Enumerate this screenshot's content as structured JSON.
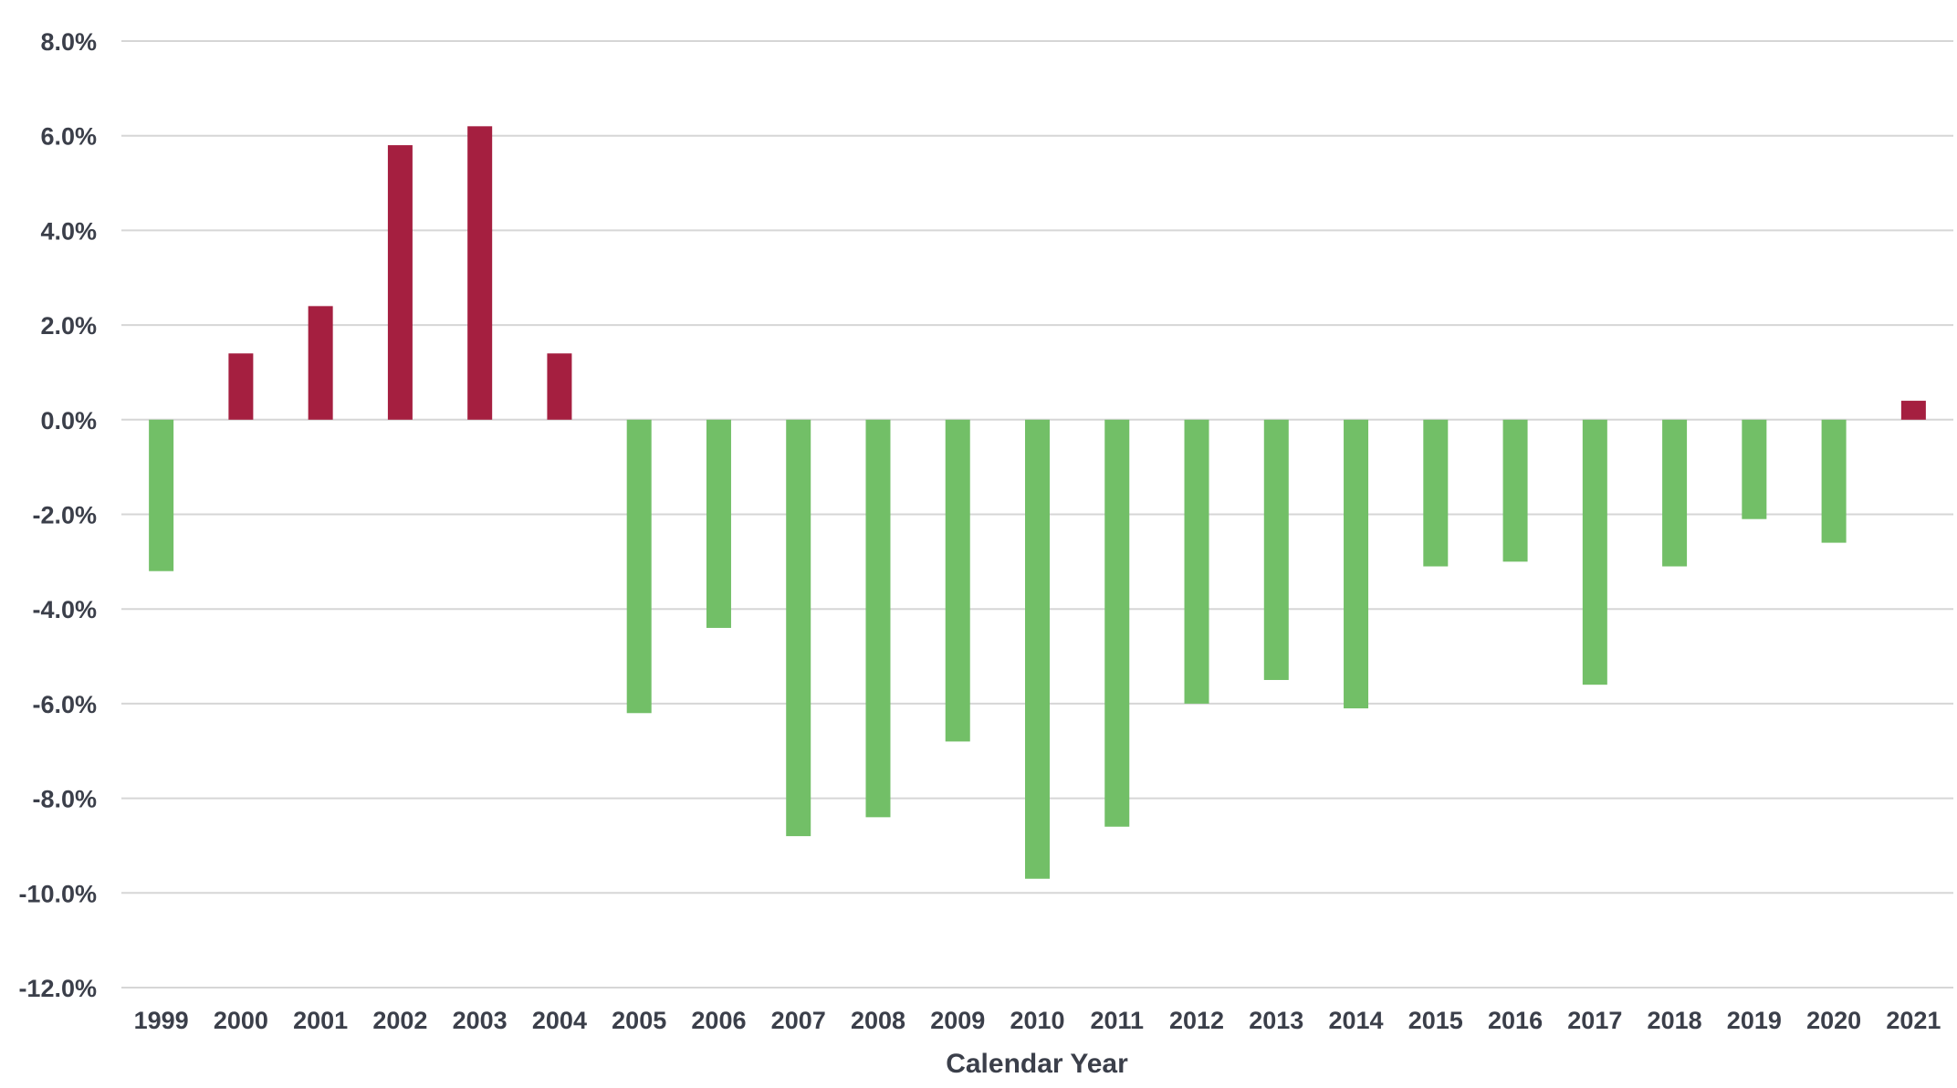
{
  "chart_data": {
    "type": "bar",
    "title": "",
    "xlabel": "Calendar Year",
    "ylabel": "",
    "ylim": [
      -12,
      8
    ],
    "grid": true,
    "legend": "none",
    "categories": [
      "1999",
      "2000",
      "2001",
      "2002",
      "2003",
      "2004",
      "2005",
      "2006",
      "2007",
      "2008",
      "2009",
      "2010",
      "2011",
      "2012",
      "2013",
      "2014",
      "2015",
      "2016",
      "2017",
      "2018",
      "2019",
      "2020",
      "2021"
    ],
    "values": [
      -3.2,
      1.4,
      2.4,
      5.8,
      6.2,
      1.4,
      -6.2,
      -4.4,
      -8.8,
      -8.4,
      -6.8,
      -9.7,
      -8.6,
      -6.0,
      -5.5,
      -6.1,
      -3.1,
      -3.0,
      -5.6,
      -3.1,
      -2.1,
      -2.6,
      0.4
    ],
    "yticks": [
      8,
      6,
      4,
      2,
      0,
      -2,
      -4,
      -6,
      -8,
      -10,
      -12
    ],
    "ytick_labels": [
      "8.0%",
      "6.0%",
      "4.0%",
      "2.0%",
      "0.0%",
      "-2.0%",
      "-4.0%",
      "-6.0%",
      "-8.0%",
      "-10.0%",
      "-12.0%"
    ],
    "colors": {
      "positive": "#A51F40",
      "negative": "#72BF67"
    }
  }
}
